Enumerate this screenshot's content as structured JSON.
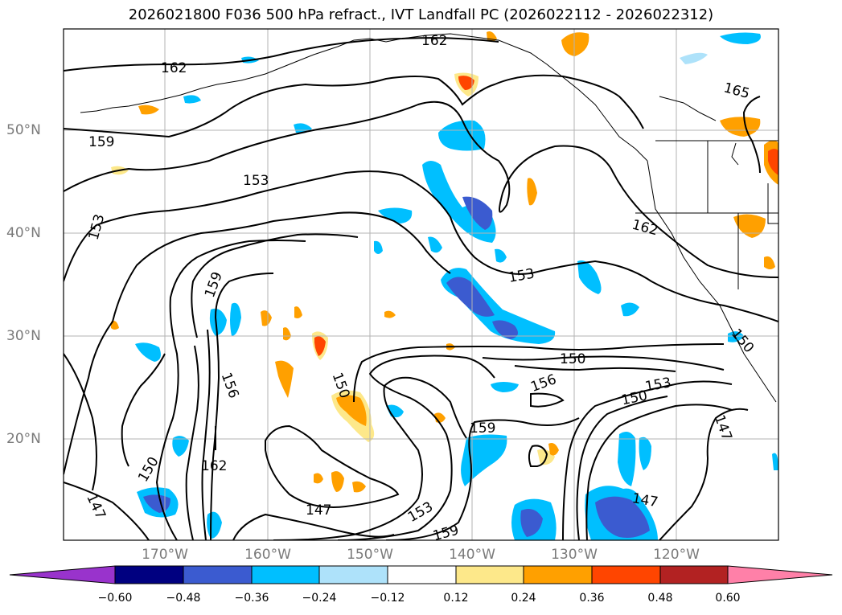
{
  "title": "2026021800 F036 500 hPa refract., IVT Landfall PC (2026022112 - 2026022312)",
  "lat_ticks": [
    "50°N",
    "40°N",
    "30°N",
    "20°N"
  ],
  "lon_ticks": [
    "170°W",
    "160°W",
    "150°W",
    "140°W",
    "130°W",
    "120°W"
  ],
  "colorbar": {
    "colors": [
      "#9933cc",
      "#000080",
      "#3b5bd0",
      "#00bfff",
      "#aee2fa",
      "#ffffff",
      "#fde88a",
      "#ffa000",
      "#ff4500",
      "#b22222",
      "#ff80a8"
    ],
    "tick_labels": [
      "−0.60",
      "−0.48",
      "−0.36",
      "−0.24",
      "−0.12",
      "0.12",
      "0.24",
      "0.36",
      "0.48",
      "0.60"
    ]
  },
  "contour_labels": [
    "162",
    "162",
    "165",
    "159",
    "153",
    "153",
    "153",
    "159",
    "162",
    "150",
    "156",
    "150",
    "156",
    "153",
    "150",
    "159",
    "150",
    "162",
    "147",
    "153",
    "147",
    "147",
    "159",
    "147",
    "150"
  ]
}
